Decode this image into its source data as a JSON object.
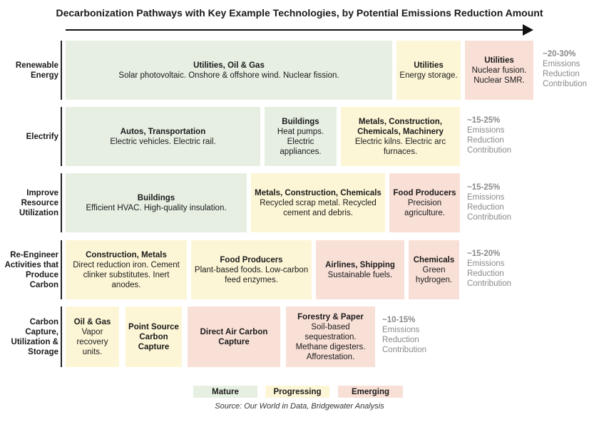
{
  "title": "Decarbonization Pathways with Key Example Technologies, by Potential Emissions Reduction Amount",
  "rows": [
    {
      "label": "Renewable Energy",
      "contribution_range": "~20-30%",
      "contribution_text": "Emissions Reduction Contribution",
      "boxes": [
        {
          "status": "mature",
          "title": "Utilities, Oil & Gas",
          "desc": "Solar photovoltaic. Onshore & offshore wind. Nuclear fission."
        },
        {
          "status": "progressing",
          "title": "Utilities",
          "desc": "Energy storage."
        },
        {
          "status": "emerging",
          "title": "Utilities",
          "desc": "Nuclear fusion. Nuclear SMR."
        }
      ]
    },
    {
      "label": "Electrify",
      "contribution_range": "~15-25%",
      "contribution_text": "Emissions Reduction Contribution",
      "boxes": [
        {
          "status": "mature",
          "title": "Autos, Transportation",
          "desc": "Electric vehicles. Electric rail."
        },
        {
          "status": "mature",
          "title": "Buildings",
          "desc": "Heat pumps. Electric appliances."
        },
        {
          "status": "progressing",
          "title": "Metals, Construction, Chemicals, Machinery",
          "desc": "Electric kilns. Electric arc furnaces."
        }
      ]
    },
    {
      "label": "Improve Resource Utilization",
      "contribution_range": "~15-25%",
      "contribution_text": "Emissions Reduction Contribution",
      "boxes": [
        {
          "status": "mature",
          "title": "Buildings",
          "desc": "Efficient HVAC. High-quality insulation."
        },
        {
          "status": "progressing",
          "title": "Metals, Construction, Chemicals",
          "desc": "Recycled scrap metal. Recycled cement and debris."
        },
        {
          "status": "emerging",
          "title": "Food Producers",
          "desc": "Precision agriculture."
        }
      ]
    },
    {
      "label": "Re-Engineer Activities that Produce Carbon",
      "contribution_range": "~15-20%",
      "contribution_text": "Emissions Reduction Contribution",
      "boxes": [
        {
          "status": "progressing",
          "title": "Construction, Metals",
          "desc": "Direct reduction iron. Cement clinker substitutes. Inert anodes."
        },
        {
          "status": "progressing",
          "title": "Food Producers",
          "desc": "Plant-based foods. Low-carbon feed enzymes."
        },
        {
          "status": "emerging",
          "title": "Airlines, Shipping",
          "desc": "Sustainable fuels."
        },
        {
          "status": "emerging",
          "title": "Chemicals",
          "desc": "Green hydrogen."
        }
      ]
    },
    {
      "label": "Carbon Capture, Utilization & Storage",
      "contribution_range": "~10-15%",
      "contribution_text": "Emissions Reduction Contribution",
      "boxes": [
        {
          "status": "progressing",
          "title": "Oil & Gas",
          "desc": "Vapor recovery units."
        },
        {
          "status": "progressing",
          "title": "Point Source Carbon Capture",
          "desc": ""
        },
        {
          "status": "emerging",
          "title": "Direct Air Carbon Capture",
          "desc": ""
        },
        {
          "status": "emerging",
          "title": "Forestry & Paper",
          "desc": "Soil-based sequestration. Methane digesters. Afforestation."
        }
      ]
    }
  ],
  "legend": {
    "mature": "Mature",
    "progressing": "Progressing",
    "emerging": "Emerging"
  },
  "colors": {
    "mature": "#e6efe2",
    "progressing": "#fdf6d6",
    "emerging": "#f9e0d7"
  },
  "source": "Source: Our World in Data, Bridgewater Analysis"
}
